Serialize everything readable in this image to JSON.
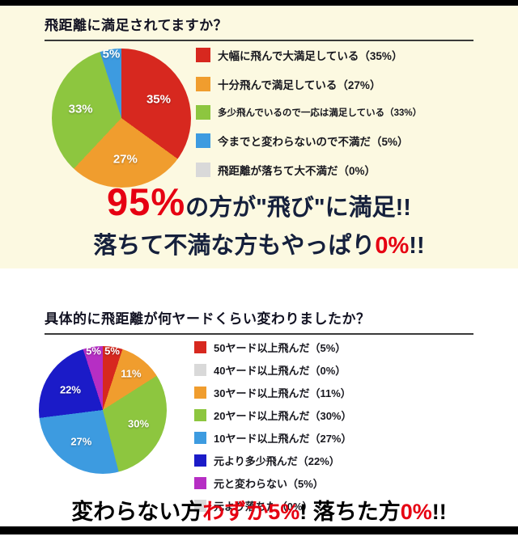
{
  "colors": {
    "page_bg": "#ffffff",
    "panel_bg": "#fcf9e1",
    "bar": "#000000",
    "title_text": "#121222",
    "headline_navy": "#15203c",
    "headline_red": "#e60012",
    "slice_label": "#ffffff"
  },
  "section1": {
    "title": "飛距離に満足されてますか？",
    "legend": [
      {
        "label": "大幅に飛んで大満足している（35%）",
        "color": "#d7281f"
      },
      {
        "label": "十分飛んで満足している（27%）",
        "color": "#f09d2e"
      },
      {
        "label": "多少飛んでいるので一応は満足している（33%）",
        "color": "#8dc63f"
      },
      {
        "label": "今までと変わらないので不満だ（5%）",
        "color": "#3d9be0"
      },
      {
        "label": "飛距離が落ちて大不満だ（0%）",
        "color": "#d9d9d9"
      }
    ],
    "headline1": {
      "big": "95%",
      "rest": "の方が\"飛び\"に満足!!"
    },
    "headline2": {
      "pre": "落ちて不満な方もやっぱり",
      "red": "0%",
      "post": "!!"
    }
  },
  "section2": {
    "title": "具体的に飛距離が何ヤードくらい変わりましたか？",
    "legend": [
      {
        "label": "50ヤード以上飛んだ（5%）",
        "color": "#d7281f"
      },
      {
        "label": "40ヤード以上飛んだ（0%）",
        "color": "#d9d9d9"
      },
      {
        "label": "30ヤード以上飛んだ（11%）",
        "color": "#f09d2e"
      },
      {
        "label": "20ヤード以上飛んだ（30%）",
        "color": "#8dc63f"
      },
      {
        "label": "10ヤード以上飛んだ（27%）",
        "color": "#3d9be0"
      },
      {
        "label": "元より多少飛んだ（22%）",
        "color": "#1b1bc8"
      },
      {
        "label": "元と変わらない（5%）",
        "color": "#b62ec4"
      },
      {
        "label": "元より落ちた（0%）",
        "color": "#d9d9d9"
      }
    ],
    "headline": {
      "p1": "変わらない方",
      "r1": "わずか5%",
      "p2": "! 落ちた方",
      "r2": "0%",
      "p3": "!!"
    }
  },
  "chart_data": [
    {
      "type": "pie",
      "title": "飛距離に満足されてますか？",
      "labels": [
        "大幅に飛んで大満足している",
        "十分飛んで満足している",
        "多少飛んでいるので一応は満足している",
        "今までと変わらないので不満だ",
        "飛距離が落ちて大不満だ"
      ],
      "values": [
        35,
        27,
        33,
        5,
        0
      ],
      "colors": [
        "#d7281f",
        "#f09d2e",
        "#8dc63f",
        "#3d9be0",
        "#d9d9d9"
      ],
      "legend_position": "right",
      "slice_labels": [
        "35%",
        "27%",
        "33%",
        "5%",
        "0%"
      ],
      "start_angle_deg": 0,
      "direction": "clockwise"
    },
    {
      "type": "pie",
      "title": "具体的に飛距離が何ヤードくらい変わりましたか？",
      "labels": [
        "50ヤード以上飛んだ",
        "40ヤード以上飛んだ",
        "30ヤード以上飛んだ",
        "20ヤード以上飛んだ",
        "10ヤード以上飛んだ",
        "元より多少飛んだ",
        "元と変わらない",
        "元より落ちた"
      ],
      "values": [
        5,
        0,
        11,
        30,
        27,
        22,
        5,
        0
      ],
      "colors": [
        "#d7281f",
        "#d9d9d9",
        "#f09d2e",
        "#8dc63f",
        "#3d9be0",
        "#1b1bc8",
        "#b62ec4",
        "#d9d9d9"
      ],
      "legend_position": "right",
      "slice_labels": [
        "5%",
        "0%",
        "11%",
        "30%",
        "27%",
        "22%",
        "5%",
        "0%"
      ],
      "start_angle_deg": 0,
      "direction": "clockwise"
    }
  ]
}
